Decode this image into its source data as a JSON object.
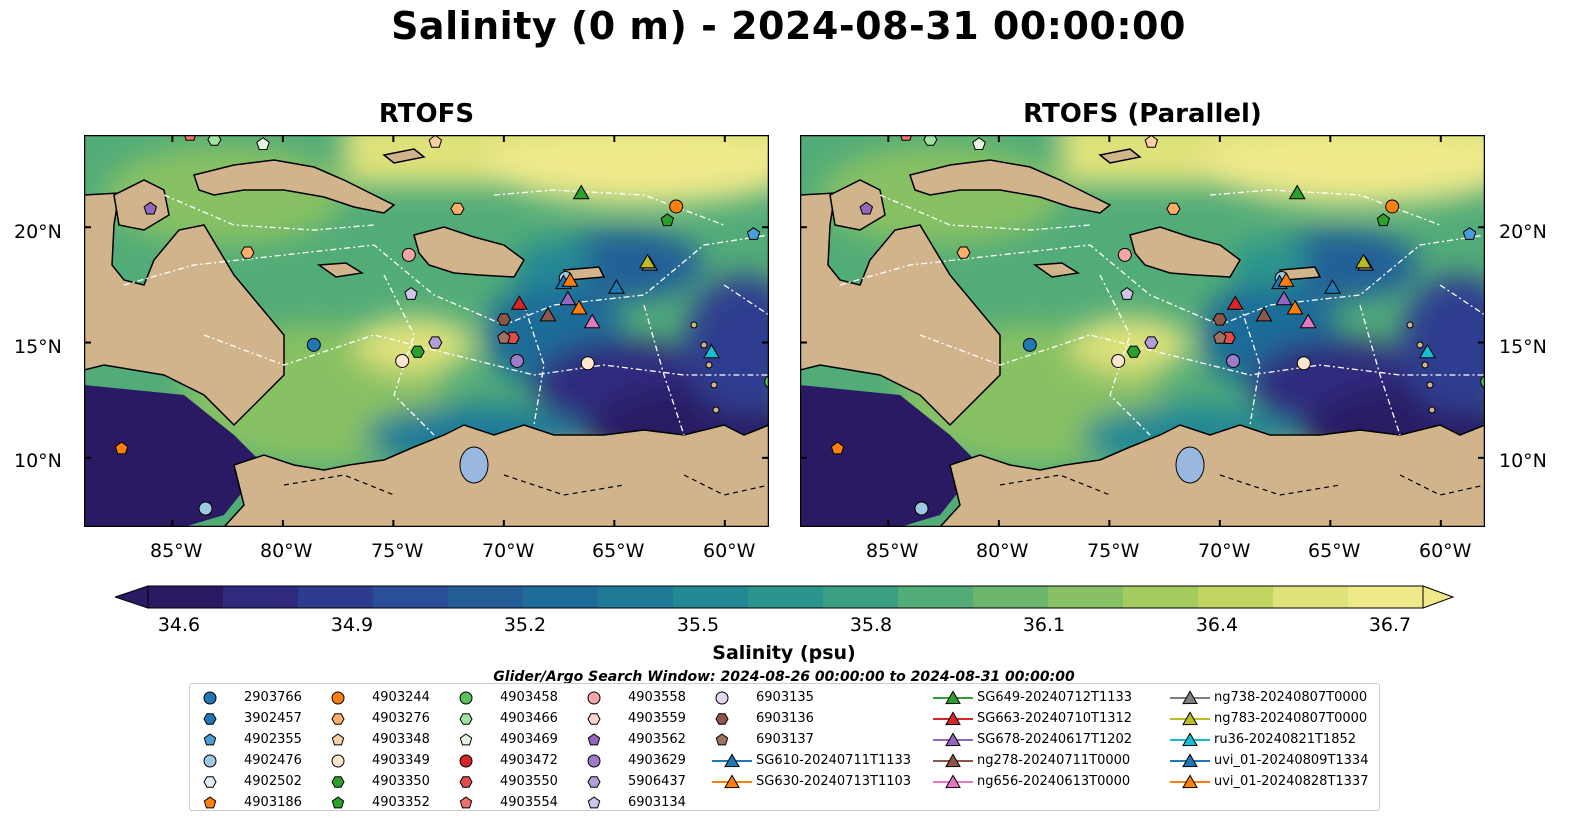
{
  "figure": {
    "title": "Salinity (0 m) - 2024-08-31 00:00:00"
  },
  "panels": [
    {
      "title": "RTOFS"
    },
    {
      "title": "RTOFS (Parallel)"
    }
  ],
  "axes": {
    "lon_ticks": [
      "85°W",
      "80°W",
      "75°W",
      "70°W",
      "65°W",
      "60°W"
    ],
    "lat_ticks": [
      "20°N",
      "15°N",
      "10°N"
    ]
  },
  "colorbar": {
    "label": "Salinity (psu)",
    "ticks": [
      "34.6",
      "34.9",
      "35.2",
      "35.5",
      "35.8",
      "36.1",
      "36.4",
      "36.7"
    ],
    "colors": [
      "#2a1a63",
      "#2e2a7e",
      "#2e3c8f",
      "#2a4f96",
      "#245e98",
      "#1f6c98",
      "#1f7a97",
      "#238894",
      "#2b948d",
      "#3ba083",
      "#52ac78",
      "#6cb76d",
      "#88c163",
      "#a4cb5d",
      "#c1d661",
      "#dfe27a",
      "#efe98a"
    ],
    "land_color": "#d2b48c"
  },
  "legend": {
    "title": "Glider/Argo Search Window: 2024-08-26 00:00:00 to 2024-08-31 00:00:00",
    "columns": [
      [
        {
          "label": "2903766",
          "marker": "circle",
          "color": "#1f77b4"
        },
        {
          "label": "3902457",
          "marker": "hexagon",
          "color": "#1f77b4"
        },
        {
          "label": "4902355",
          "marker": "pentagon",
          "color": "#4a9fd8"
        },
        {
          "label": "4902476",
          "marker": "circle",
          "color": "#9ecae1"
        },
        {
          "label": "4902502",
          "marker": "hexagon",
          "color": "#deebf7"
        },
        {
          "label": "4903186",
          "marker": "pentagon",
          "color": "#ff7f0e"
        }
      ],
      [
        {
          "label": "4903244",
          "marker": "circle",
          "color": "#ff7f0e"
        },
        {
          "label": "4903276",
          "marker": "hexagon",
          "color": "#fdae6b"
        },
        {
          "label": "4903348",
          "marker": "pentagon",
          "color": "#fdd0a2"
        },
        {
          "label": "4903349",
          "marker": "circle",
          "color": "#fee6ce"
        },
        {
          "label": "4903350",
          "marker": "hexagon",
          "color": "#2ca02c"
        },
        {
          "label": "4903352",
          "marker": "pentagon",
          "color": "#2ca02c"
        }
      ],
      [
        {
          "label": "4903458",
          "marker": "circle",
          "color": "#5cc05c"
        },
        {
          "label": "4903466",
          "marker": "hexagon",
          "color": "#a1e3a1"
        },
        {
          "label": "4903469",
          "marker": "pentagon",
          "color": "#e5f5e0"
        },
        {
          "label": "4903472",
          "marker": "circle",
          "color": "#d62728"
        },
        {
          "label": "4903550",
          "marker": "hexagon",
          "color": "#e34a4a"
        },
        {
          "label": "4903554",
          "marker": "pentagon",
          "color": "#f07070"
        }
      ],
      [
        {
          "label": "4903558",
          "marker": "circle",
          "color": "#f4a6a6"
        },
        {
          "label": "4903559",
          "marker": "hexagon",
          "color": "#fcd5d0"
        },
        {
          "label": "4903562",
          "marker": "pentagon",
          "color": "#9467bd"
        },
        {
          "label": "4903629",
          "marker": "circle",
          "color": "#9e7bc8"
        },
        {
          "label": "5906437",
          "marker": "hexagon",
          "color": "#b39ddb"
        },
        {
          "label": "6903134",
          "marker": "pentagon",
          "color": "#d1c4e9"
        }
      ],
      [
        {
          "label": "6903135",
          "marker": "circle",
          "color": "#e8d5f5"
        },
        {
          "label": "6903136",
          "marker": "hexagon",
          "color": "#8c564b"
        },
        {
          "label": "6903137",
          "marker": "pentagon",
          "color": "#a0715f"
        },
        {
          "label": "SG610-20240711T1133",
          "marker": "triangle",
          "color": "#1f77b4"
        },
        {
          "label": "SG630-20240713T1103",
          "marker": "triangle",
          "color": "#ff7f0e"
        }
      ],
      [
        {
          "label": "SG649-20240712T1133",
          "marker": "triangle",
          "color": "#2ca02c"
        },
        {
          "label": "SG663-20240710T1312",
          "marker": "triangle",
          "color": "#d62728"
        },
        {
          "label": "SG678-20240617T1202",
          "marker": "triangle",
          "color": "#9467bd"
        },
        {
          "label": "ng278-20240711T0000",
          "marker": "triangle",
          "color": "#8c564b"
        },
        {
          "label": "ng656-20240613T0000",
          "marker": "triangle",
          "color": "#e377c2"
        }
      ],
      [
        {
          "label": "ng738-20240807T0000",
          "marker": "triangle",
          "color": "#7f7f7f"
        },
        {
          "label": "ng783-20240807T0000",
          "marker": "triangle",
          "color": "#bcbd22"
        },
        {
          "label": "ru36-20240821T1852",
          "marker": "triangle",
          "color": "#17becf"
        },
        {
          "label": "uvi_01-20240809T1334",
          "marker": "triangle",
          "color": "#1f77b4"
        },
        {
          "label": "uvi_01-20240828T1337",
          "marker": "triangle",
          "color": "#ff7f0e"
        }
      ]
    ]
  },
  "chart_data": {
    "type": "heatmap",
    "variable": "Salinity",
    "depth_m": 0,
    "datetime": "2024-08-31 00:00:00",
    "units": "psu",
    "colorbar_range": [
      34.6,
      36.7
    ],
    "colorbar_extend": "both",
    "lon_range": [
      -89,
      -58
    ],
    "lat_range": [
      7,
      24
    ],
    "panels": [
      "RTOFS",
      "RTOFS (Parallel)"
    ],
    "floats": [
      {
        "id": "2903766",
        "lon": -78.6,
        "lat": 14.9,
        "marker": "circle",
        "color": "#1f77b4"
      },
      {
        "id": "4902355",
        "lon": -58.7,
        "lat": 19.7,
        "marker": "pentagon",
        "color": "#4a9fd8"
      },
      {
        "id": "4902476",
        "lon": -67.2,
        "lat": 17.8,
        "marker": "circle",
        "color": "#9ecae1"
      },
      {
        "id": "4902476b",
        "lon": -83.5,
        "lat": 7.8,
        "marker": "circle",
        "color": "#9ecae1"
      },
      {
        "id": "4903186",
        "lon": -87.3,
        "lat": 10.4,
        "marker": "pentagon",
        "color": "#ff7f0e"
      },
      {
        "id": "4903244",
        "lon": -62.2,
        "lat": 20.9,
        "marker": "circle",
        "color": "#ff7f0e"
      },
      {
        "id": "4903276",
        "lon": -72.1,
        "lat": 20.8,
        "marker": "hexagon",
        "color": "#fdae6b"
      },
      {
        "id": "4903348",
        "lon": -73.1,
        "lat": 23.7,
        "marker": "pentagon",
        "color": "#fdd0a2"
      },
      {
        "id": "4903276b",
        "lon": -81.6,
        "lat": 18.9,
        "marker": "hexagon",
        "color": "#fdae6b"
      },
      {
        "id": "4903349",
        "lon": -74.6,
        "lat": 14.2,
        "marker": "circle",
        "color": "#fee6ce"
      },
      {
        "id": "4903349b",
        "lon": -66.2,
        "lat": 14.1,
        "marker": "circle",
        "color": "#fee6ce"
      },
      {
        "id": "4903350",
        "lon": -73.9,
        "lat": 14.6,
        "marker": "hexagon",
        "color": "#2ca02c"
      },
      {
        "id": "4903352",
        "lon": -62.6,
        "lat": 20.3,
        "marker": "pentagon",
        "color": "#2ca02c"
      },
      {
        "id": "4903458",
        "lon": -57.9,
        "lat": 13.3,
        "marker": "circle",
        "color": "#5cc05c"
      },
      {
        "id": "4903466",
        "lon": -83.1,
        "lat": 23.8,
        "marker": "hexagon",
        "color": "#a1e3a1"
      },
      {
        "id": "4903469",
        "lon": -80.9,
        "lat": 23.6,
        "marker": "pentagon",
        "color": "#e5f5e0"
      },
      {
        "id": "4903550",
        "lon": -69.6,
        "lat": 15.2,
        "marker": "hexagon",
        "color": "#e34a4a"
      },
      {
        "id": "4903554",
        "lon": -84.2,
        "lat": 24.0,
        "marker": "pentagon",
        "color": "#f07070"
      },
      {
        "id": "4903558",
        "lon": -74.3,
        "lat": 18.8,
        "marker": "circle",
        "color": "#f4a6a6"
      },
      {
        "id": "4903562",
        "lon": -86.0,
        "lat": 20.8,
        "marker": "pentagon",
        "color": "#9467bd"
      },
      {
        "id": "4903629",
        "lon": -69.4,
        "lat": 14.2,
        "marker": "circle",
        "color": "#9e7bc8"
      },
      {
        "id": "5906437",
        "lon": -73.1,
        "lat": 15.0,
        "marker": "hexagon",
        "color": "#b39ddb"
      },
      {
        "id": "6903134",
        "lon": -74.2,
        "lat": 17.1,
        "marker": "pentagon",
        "color": "#d1c4e9"
      },
      {
        "id": "6903136",
        "lon": -70.0,
        "lat": 16.0,
        "marker": "hexagon",
        "color": "#8c564b"
      },
      {
        "id": "6903137",
        "lon": -70.0,
        "lat": 15.2,
        "marker": "pentagon",
        "color": "#a0715f"
      }
    ],
    "gliders": [
      {
        "id": "SG610-20240711T1133",
        "lon": -67.3,
        "lat": 17.6,
        "color": "#1f77b4"
      },
      {
        "id": "SG630-20240713T1103",
        "lon": -66.6,
        "lat": 16.5,
        "color": "#ff7f0e"
      },
      {
        "id": "SG649-20240712T1133",
        "lon": -66.5,
        "lat": 21.5,
        "color": "#2ca02c"
      },
      {
        "id": "SG663-20240710T1312",
        "lon": -69.3,
        "lat": 16.7,
        "color": "#d62728"
      },
      {
        "id": "SG678-20240617T1202",
        "lon": -67.1,
        "lat": 16.9,
        "color": "#9467bd"
      },
      {
        "id": "ng278-20240711T0000",
        "lon": -68.0,
        "lat": 16.2,
        "color": "#8c564b"
      },
      {
        "id": "ng656-20240613T0000",
        "lon": -66.0,
        "lat": 15.9,
        "color": "#e377c2"
      },
      {
        "id": "ng738-20240807T0000",
        "lon": -63.4,
        "lat": 18.4,
        "color": "#7f7f7f"
      },
      {
        "id": "ng783-20240807T0000",
        "lon": -63.5,
        "lat": 18.5,
        "color": "#bcbd22"
      },
      {
        "id": "ru36-20240821T1852",
        "lon": -60.6,
        "lat": 14.6,
        "color": "#17becf"
      },
      {
        "id": "uvi_01-20240809T1334",
        "lon": -64.9,
        "lat": 17.4,
        "color": "#1f77b4"
      },
      {
        "id": "uvi_01-20240828T1337",
        "lon": -67.0,
        "lat": 17.7,
        "color": "#ff7f0e"
      }
    ]
  }
}
